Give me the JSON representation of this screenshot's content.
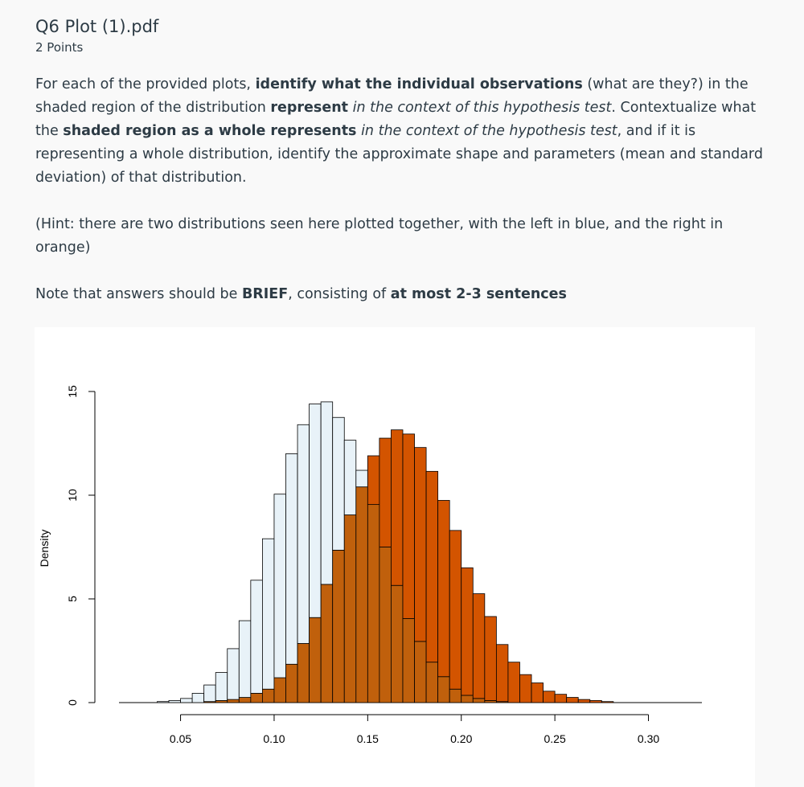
{
  "question": {
    "title": "Q6 Plot (1).pdf",
    "points": "2 Points",
    "p1": [
      {
        "t": "For each of the provided plots, ",
        "s": "n"
      },
      {
        "t": "identify what the individual observations",
        "s": "b"
      },
      {
        "t": " (what are they?) in the shaded region of the distribution ",
        "s": "n"
      },
      {
        "t": "represent",
        "s": "b"
      },
      {
        "t": " ",
        "s": "n"
      },
      {
        "t": "in the context of this hypothesis test",
        "s": "i"
      },
      {
        "t": ". Contextualize what the ",
        "s": "n"
      },
      {
        "t": "shaded region as a whole represents",
        "s": "b"
      },
      {
        "t": " ",
        "s": "n"
      },
      {
        "t": "in the context of the hypothesis test",
        "s": "i"
      },
      {
        "t": ", and if it is representing a whole distribution, identify the approximate shape and parameters (mean and standard deviation) of that distribution.",
        "s": "n"
      }
    ],
    "hint": "(Hint: there are two distributions seen here plotted together, with the left in blue, and the right in orange)",
    "note": [
      {
        "t": "Note that answers should be ",
        "s": "n"
      },
      {
        "t": "BRIEF",
        "s": "b"
      },
      {
        "t": ", consisting of ",
        "s": "n"
      },
      {
        "t": "at most 2-3 sentences",
        "s": "b"
      }
    ]
  },
  "chart_data": {
    "type": "bar",
    "subtype": "overlaid-histogram",
    "title": "",
    "xlabel": "",
    "ylabel": "Density",
    "xlim": [
      0.03,
      0.335
    ],
    "ylim": [
      0,
      15
    ],
    "xticks": [
      0.05,
      0.1,
      0.15,
      0.2,
      0.25,
      0.3
    ],
    "xtick_labels": [
      "0.05",
      "0.10",
      "0.15",
      "0.20",
      "0.25",
      "0.30"
    ],
    "yticks": [
      0,
      5,
      10,
      15
    ],
    "ytick_labels": [
      "0",
      "5",
      "10",
      "15"
    ],
    "bin_start": 0.0375,
    "bin_width": 0.00625,
    "colors": {
      "left": "#e8f2f8",
      "right": "#d35400",
      "overlap": "#c0600c",
      "edge": "#000000"
    },
    "series": [
      {
        "color_name": "blue",
        "values": [
          0.05,
          0.1,
          0.2,
          0.45,
          0.85,
          1.45,
          2.6,
          3.95,
          5.9,
          7.9,
          10.05,
          12.0,
          13.4,
          14.4,
          14.5,
          13.75,
          12.65,
          11.2,
          9.55,
          7.5,
          5.65,
          4.05,
          2.95,
          1.95,
          1.25,
          0.65,
          0.35,
          0.2,
          0.1,
          0.05,
          0.0,
          0.0,
          0.0,
          0.0,
          0.0,
          0.0,
          0.0,
          0.0,
          0.0,
          0.0,
          0.0,
          0.0,
          0.0
        ]
      },
      {
        "color_name": "orange",
        "values": [
          0.0,
          0.0,
          0.0,
          0.0,
          0.05,
          0.1,
          0.15,
          0.25,
          0.45,
          0.65,
          1.2,
          1.85,
          2.85,
          4.1,
          5.7,
          7.35,
          9.05,
          10.4,
          11.9,
          12.75,
          13.15,
          12.95,
          12.3,
          11.15,
          9.75,
          8.3,
          6.5,
          5.25,
          4.15,
          2.8,
          1.95,
          1.35,
          0.95,
          0.55,
          0.4,
          0.25,
          0.15,
          0.1,
          0.05,
          0.0,
          0.0,
          0.0,
          0.0
        ]
      }
    ]
  }
}
